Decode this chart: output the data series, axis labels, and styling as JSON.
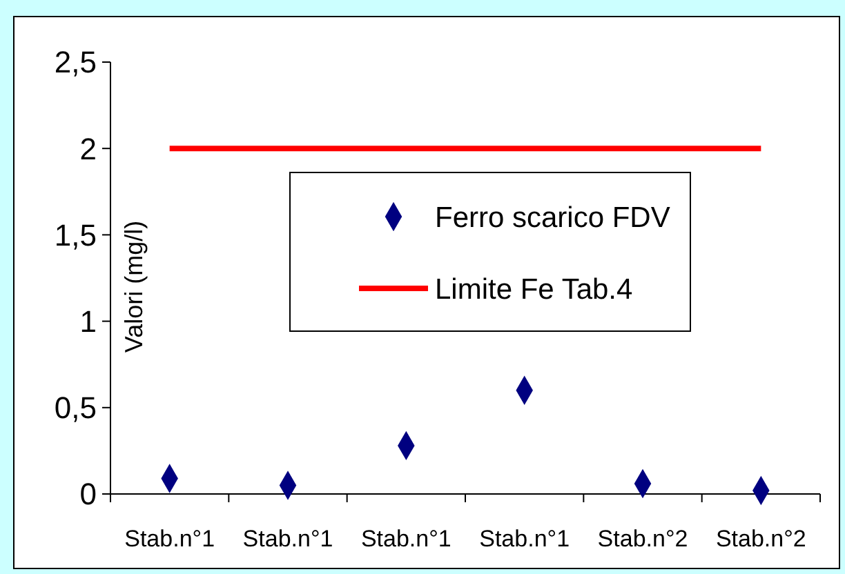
{
  "chart_data": {
    "type": "scatter",
    "ylabel": "Valori (mg/l)",
    "categories": [
      "Stab.n°1",
      "Stab.n°1",
      "Stab.n°1",
      "Stab.n°1",
      "Stab.n°2",
      "Stab.n°2"
    ],
    "series": [
      {
        "name": "Ferro scarico FDV",
        "color": "#000080",
        "marker": "diamond",
        "values": [
          0.09,
          0.05,
          0.28,
          0.6,
          0.06,
          0.02
        ]
      },
      {
        "name": "Limite Fe Tab.4",
        "color": "#ff0000",
        "type": "line",
        "marker": "none",
        "values": [
          2,
          2,
          2,
          2,
          2,
          2
        ]
      }
    ],
    "ylim": [
      0,
      2.5
    ],
    "yticks": [
      {
        "value": 0,
        "label": "0"
      },
      {
        "value": 0.5,
        "label": "0,5"
      },
      {
        "value": 1,
        "label": "1"
      },
      {
        "value": 1.5,
        "label": "1,5"
      },
      {
        "value": 2,
        "label": "2"
      },
      {
        "value": 2.5,
        "label": "2,5"
      }
    ],
    "grid": false,
    "legend": "right"
  }
}
